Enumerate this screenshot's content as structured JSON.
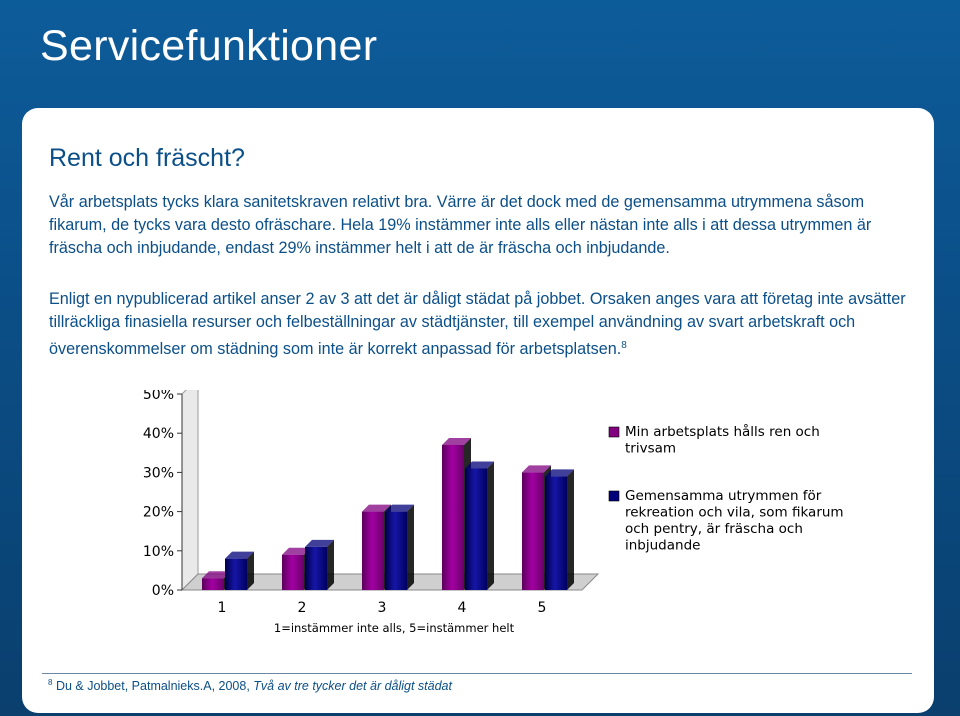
{
  "slide": {
    "title": "Servicefunktioner",
    "subheading": "Rent och fräscht?",
    "paragraph1": "Vår arbetsplats tycks klara sanitetskraven relativt bra. Värre är det dock med de gemensamma utrymmena såsom fikarum, de tycks vara desto ofräschare. Hela 19% instämmer inte alls eller nästan inte alls i att dessa utrymmen är fräscha och inbjudande, endast 29% instämmer helt i att de är fräscha och inbjudande.",
    "paragraph2": "Enligt en nypublicerad artikel anser 2 av 3 att det är dåligt städat på jobbet. Orsaken anges vara att företag inte avsätter tillräckliga finasiella resurser och felbeställningar av städtjänster, till exempel användning av svart arbetskraft och överenskommelser om städning som inte är korrekt anpassad för arbetsplatsen.",
    "paragraph2_ref": "8",
    "footnote_num": "8",
    "footnote_text": "Du & Jobbet, Patmalnieks.A, 2008, ",
    "footnote_italic": "Två av tre tycker det är dåligt städat"
  },
  "colors": {
    "series1": "#800080",
    "series2": "#00007a",
    "text": "#0b4f88",
    "background": "#0b4f88"
  },
  "chart_data": {
    "type": "bar",
    "categories": [
      "1",
      "2",
      "3",
      "4",
      "5"
    ],
    "series": [
      {
        "name": "Min arbetsplats hålls ren och trivsam",
        "values": [
          3,
          9,
          20,
          37,
          30
        ]
      },
      {
        "name": "Gemensamma utrymmen för rekreation och vila, som fikarum och pentry, är fräscha och inbjudande",
        "values": [
          8,
          11,
          20,
          31,
          29
        ]
      }
    ],
    "xlabel": "1=instämmer inte alls, 5=instämmer helt",
    "ylabel": "",
    "yticks": [
      "0%",
      "10%",
      "20%",
      "30%",
      "40%",
      "50%"
    ],
    "ylim": [
      0,
      50
    ],
    "grid": false,
    "legend": "right",
    "style": "3d"
  }
}
